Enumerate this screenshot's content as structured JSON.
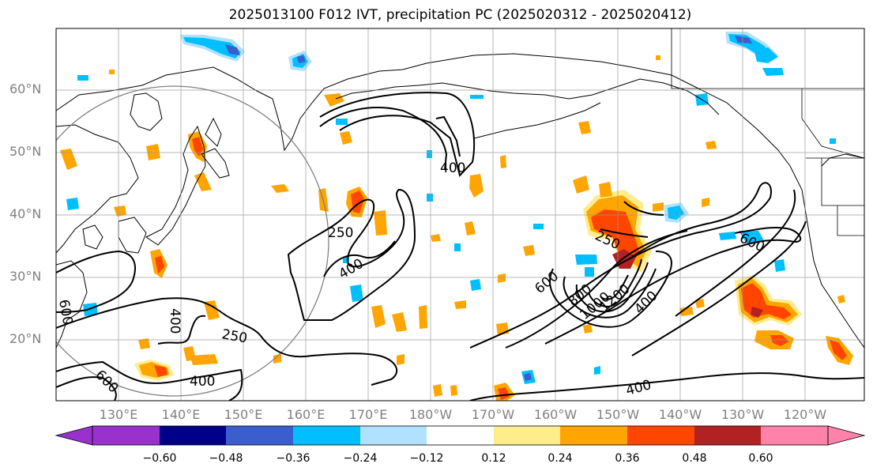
{
  "title": "2025013100 F012 IVT, precipitation PC (2025020312 - 2025020412)",
  "map": {
    "lon_range": [
      120,
      245
    ],
    "lat_range": [
      10,
      70
    ],
    "lat_labels": [
      "20°N",
      "30°N",
      "40°N",
      "50°N",
      "60°N"
    ],
    "lon_labels": [
      "130°E",
      "140°E",
      "150°E",
      "160°E",
      "170°E",
      "180°W",
      "170°W",
      "160°W",
      "150°W",
      "140°W",
      "130°W",
      "120°W"
    ],
    "ivt_contour_labels": [
      "400",
      "250",
      "400",
      "250",
      "400",
      "600",
      "250",
      "600",
      "800",
      "1000",
      "1200",
      "400",
      "400",
      "600",
      "400",
      "600",
      "400",
      "250",
      "400"
    ],
    "gridlines": true,
    "coastlines": true,
    "projection": "PlateCarree"
  },
  "colorbar": {
    "colors": [
      "#9932cc",
      "#00008b",
      "#3a5fcd",
      "#00bfff",
      "#b0e2ff",
      "#ffffff",
      "#ffec8b",
      "#ffa500",
      "#ff4500",
      "#b22222",
      "#ff82ab"
    ],
    "tick_labels": [
      "−0.60",
      "−0.48",
      "−0.36",
      "−0.24",
      "−0.12",
      "0.12",
      "0.24",
      "0.36",
      "0.48",
      "0.60"
    ],
    "extend": "both"
  }
}
